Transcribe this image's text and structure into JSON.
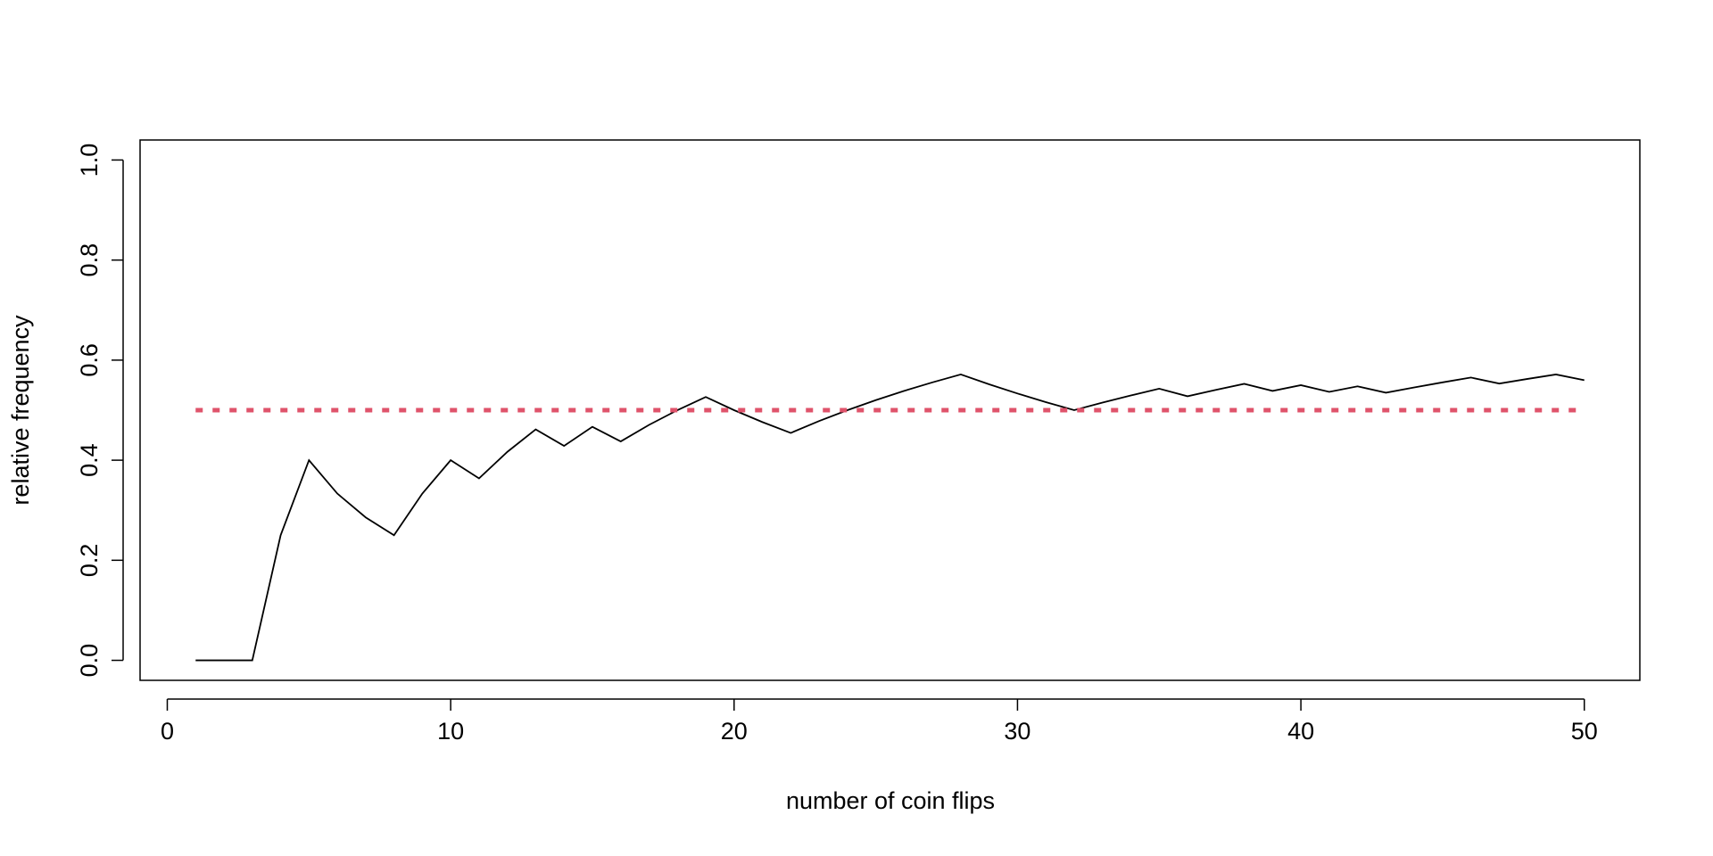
{
  "chart_data": {
    "type": "line",
    "xlabel": "number of coin flips",
    "ylabel": "relative frequency",
    "xlim": [
      -0.96,
      51.96
    ],
    "xticks": [
      0,
      10,
      20,
      30,
      40,
      50
    ],
    "ylim": [
      -0.04,
      1.04
    ],
    "yticks": [
      {
        "value": 0,
        "label": "0.0"
      },
      0.2,
      0.4,
      0.6,
      0.8,
      {
        "value": 1,
        "label": "1.0"
      }
    ],
    "series": [
      {
        "color": "#000000",
        "dash": "solid",
        "x": [
          1,
          2,
          3,
          4,
          5,
          6,
          7,
          8,
          9,
          10,
          11,
          12,
          13,
          14,
          15,
          16,
          17,
          18,
          19,
          20,
          21,
          22,
          23,
          24,
          25,
          26,
          27,
          28,
          29,
          30,
          31,
          32,
          33,
          34,
          35,
          36,
          37,
          38,
          39,
          40,
          41,
          42,
          43,
          44,
          45,
          46,
          47,
          48,
          49,
          50
        ],
        "values": [
          0,
          0,
          0,
          0.25,
          0.4,
          0.3333,
          0.2857,
          0.25,
          0.3333,
          0.4,
          0.3636,
          0.4167,
          0.4615,
          0.4286,
          0.4667,
          0.4375,
          0.4706,
          0.5,
          0.5263,
          0.5,
          0.4762,
          0.4545,
          0.4783,
          0.5,
          0.52,
          0.5385,
          0.5556,
          0.5714,
          0.5517,
          0.5333,
          0.5161,
          0.5,
          0.5152,
          0.5294,
          0.5429,
          0.5278,
          0.5405,
          0.5526,
          0.5385,
          0.55,
          0.5366,
          0.5476,
          0.5349,
          0.5455,
          0.5556,
          0.5652,
          0.5532,
          0.5625,
          0.5714,
          0.56
        ]
      },
      {
        "color": "#df536b",
        "dash": "dotted",
        "x": [
          1,
          50
        ],
        "values": [
          0.5,
          0.5
        ]
      }
    ]
  }
}
